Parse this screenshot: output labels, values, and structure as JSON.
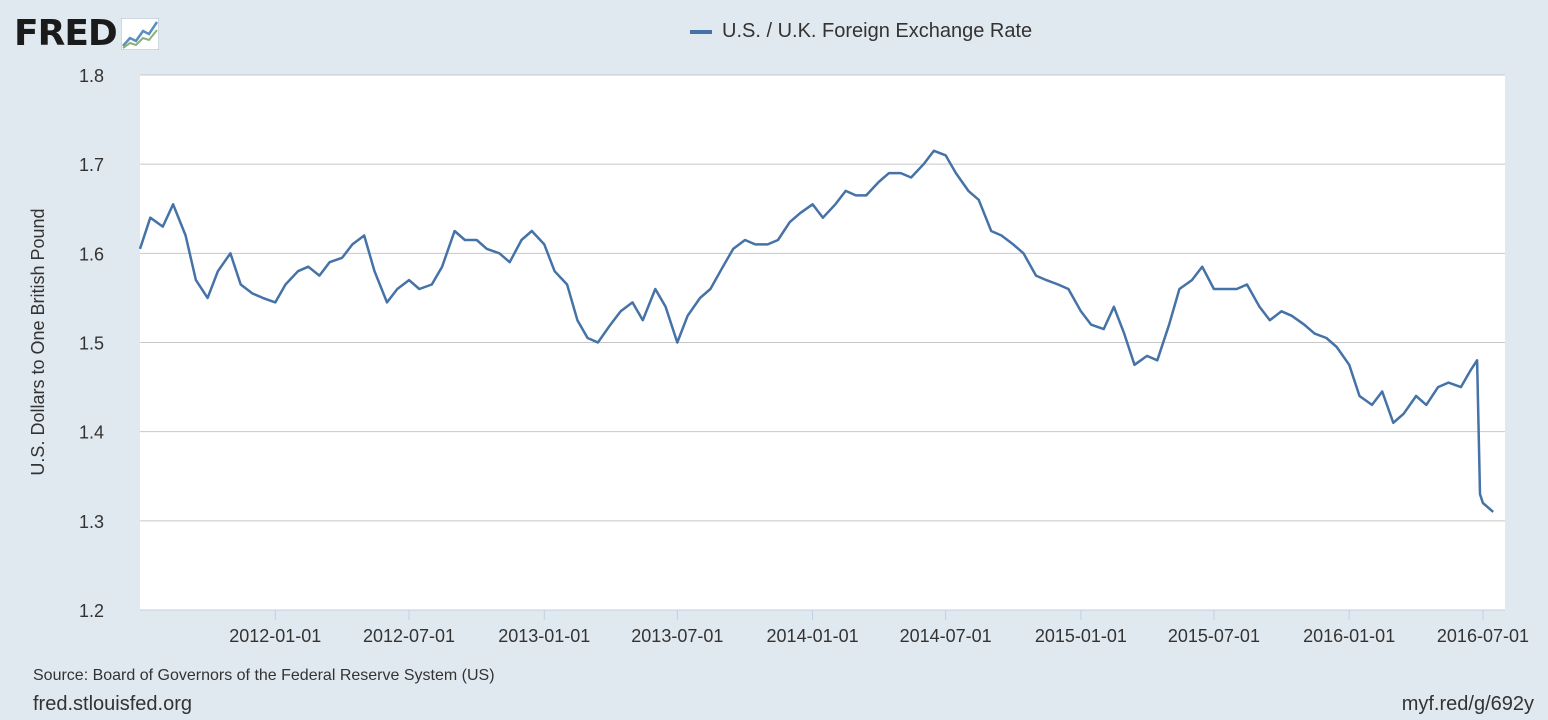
{
  "logo": {
    "text": "FRED"
  },
  "footer": {
    "source": "Source: Board of Governors of the Federal Reserve System (US)",
    "site": "fred.stlouisfed.org",
    "short_url": "myf.red/g/692y"
  },
  "colors": {
    "series": "#4572a7",
    "background": "#e1e9f0",
    "plot": "#ffffff",
    "grid": "#c8c8c8"
  },
  "chart_data": {
    "type": "line",
    "title": "",
    "xlabel": "",
    "ylabel": "U.S. Dollars to One British Pound",
    "ylim": [
      1.2,
      1.8
    ],
    "xlim": [
      "2011-07-01",
      "2016-07-31"
    ],
    "yticks": [
      "1.2",
      "1.3",
      "1.4",
      "1.5",
      "1.6",
      "1.7",
      "1.8"
    ],
    "xticks": [
      "2012-01-01",
      "2012-07-01",
      "2013-01-01",
      "2013-07-01",
      "2014-01-01",
      "2014-07-01",
      "2015-01-01",
      "2015-07-01",
      "2016-01-01",
      "2016-07-01"
    ],
    "grid": true,
    "legend_position": "top-center",
    "series": [
      {
        "name": "U.S. / U.K. Foreign Exchange Rate",
        "x": [
          "2011-07-01",
          "2011-07-15",
          "2011-08-01",
          "2011-08-15",
          "2011-09-01",
          "2011-09-15",
          "2011-10-01",
          "2011-10-15",
          "2011-11-01",
          "2011-11-15",
          "2011-12-01",
          "2011-12-15",
          "2012-01-01",
          "2012-01-15",
          "2012-02-01",
          "2012-02-15",
          "2012-03-01",
          "2012-03-15",
          "2012-04-01",
          "2012-04-15",
          "2012-05-01",
          "2012-05-15",
          "2012-06-01",
          "2012-06-15",
          "2012-07-01",
          "2012-07-15",
          "2012-08-01",
          "2012-08-15",
          "2012-09-01",
          "2012-09-15",
          "2012-10-01",
          "2012-10-15",
          "2012-11-01",
          "2012-11-15",
          "2012-12-01",
          "2012-12-15",
          "2013-01-01",
          "2013-01-15",
          "2013-02-01",
          "2013-02-15",
          "2013-03-01",
          "2013-03-15",
          "2013-04-01",
          "2013-04-15",
          "2013-05-01",
          "2013-05-15",
          "2013-06-01",
          "2013-06-15",
          "2013-07-01",
          "2013-07-15",
          "2013-08-01",
          "2013-08-15",
          "2013-09-01",
          "2013-09-15",
          "2013-10-01",
          "2013-10-15",
          "2013-11-01",
          "2013-11-15",
          "2013-12-01",
          "2013-12-15",
          "2014-01-01",
          "2014-01-15",
          "2014-02-01",
          "2014-02-15",
          "2014-03-01",
          "2014-03-15",
          "2014-04-01",
          "2014-04-15",
          "2014-05-01",
          "2014-05-15",
          "2014-06-01",
          "2014-06-15",
          "2014-07-01",
          "2014-07-15",
          "2014-08-01",
          "2014-08-15",
          "2014-09-01",
          "2014-09-15",
          "2014-10-01",
          "2014-10-15",
          "2014-11-01",
          "2014-11-15",
          "2014-12-01",
          "2014-12-15",
          "2015-01-01",
          "2015-01-15",
          "2015-02-01",
          "2015-02-15",
          "2015-03-01",
          "2015-03-15",
          "2015-04-01",
          "2015-04-15",
          "2015-05-01",
          "2015-05-15",
          "2015-06-01",
          "2015-06-15",
          "2015-07-01",
          "2015-07-15",
          "2015-08-01",
          "2015-08-15",
          "2015-09-01",
          "2015-09-15",
          "2015-10-01",
          "2015-10-15",
          "2015-11-01",
          "2015-11-15",
          "2015-12-01",
          "2015-12-15",
          "2016-01-01",
          "2016-01-15",
          "2016-02-01",
          "2016-02-15",
          "2016-03-01",
          "2016-03-15",
          "2016-04-01",
          "2016-04-15",
          "2016-05-01",
          "2016-05-15",
          "2016-06-01",
          "2016-06-15",
          "2016-06-23",
          "2016-06-27",
          "2016-07-01",
          "2016-07-15"
        ],
        "values": [
          1.605,
          1.64,
          1.63,
          1.655,
          1.62,
          1.57,
          1.55,
          1.58,
          1.6,
          1.565,
          1.555,
          1.55,
          1.545,
          1.565,
          1.58,
          1.585,
          1.575,
          1.59,
          1.595,
          1.61,
          1.62,
          1.58,
          1.545,
          1.56,
          1.57,
          1.56,
          1.565,
          1.585,
          1.625,
          1.615,
          1.615,
          1.605,
          1.6,
          1.59,
          1.615,
          1.625,
          1.61,
          1.58,
          1.565,
          1.525,
          1.505,
          1.5,
          1.52,
          1.535,
          1.545,
          1.525,
          1.56,
          1.54,
          1.5,
          1.53,
          1.55,
          1.56,
          1.585,
          1.605,
          1.615,
          1.61,
          1.61,
          1.615,
          1.635,
          1.645,
          1.655,
          1.64,
          1.655,
          1.67,
          1.665,
          1.665,
          1.68,
          1.69,
          1.69,
          1.685,
          1.7,
          1.715,
          1.71,
          1.69,
          1.67,
          1.66,
          1.625,
          1.62,
          1.61,
          1.6,
          1.575,
          1.57,
          1.565,
          1.56,
          1.535,
          1.52,
          1.515,
          1.54,
          1.51,
          1.475,
          1.485,
          1.48,
          1.52,
          1.56,
          1.57,
          1.585,
          1.56,
          1.56,
          1.56,
          1.565,
          1.54,
          1.525,
          1.535,
          1.53,
          1.52,
          1.51,
          1.505,
          1.495,
          1.475,
          1.44,
          1.43,
          1.445,
          1.41,
          1.42,
          1.44,
          1.43,
          1.45,
          1.455,
          1.45,
          1.47,
          1.48,
          1.33,
          1.32,
          1.31
        ]
      }
    ]
  }
}
